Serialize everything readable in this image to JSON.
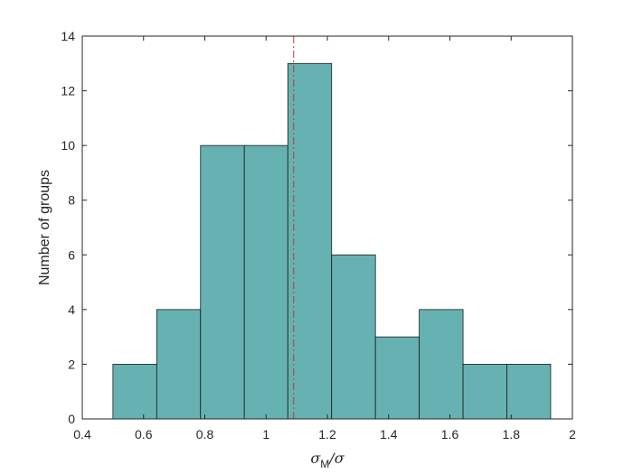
{
  "chart_data": {
    "type": "bar",
    "subtype": "histogram",
    "bins": [
      {
        "x0": 0.5,
        "x1": 0.643,
        "count": 2
      },
      {
        "x0": 0.643,
        "x1": 0.786,
        "count": 4
      },
      {
        "x0": 0.786,
        "x1": 0.929,
        "count": 10
      },
      {
        "x0": 0.929,
        "x1": 1.071,
        "count": 10
      },
      {
        "x0": 1.071,
        "x1": 1.214,
        "count": 13
      },
      {
        "x0": 1.214,
        "x1": 1.357,
        "count": 6
      },
      {
        "x0": 1.357,
        "x1": 1.5,
        "count": 3
      },
      {
        "x0": 1.5,
        "x1": 1.643,
        "count": 4
      },
      {
        "x0": 1.643,
        "x1": 1.786,
        "count": 2
      },
      {
        "x0": 1.786,
        "x1": 1.929,
        "count": 2
      }
    ],
    "reference_line": {
      "x": 1.09,
      "style": "dash-dot",
      "color": "#c0392b"
    },
    "xlabel": {
      "main": "σ",
      "sub": "M",
      "rest": "/σ"
    },
    "ylabel": "Number of groups",
    "xlim": [
      0.4,
      2
    ],
    "ylim": [
      0,
      14
    ],
    "xticks": [
      "0.4",
      "0.6",
      "0.8",
      "1",
      "1.2",
      "1.4",
      "1.6",
      "1.8",
      "2"
    ],
    "yticks": [
      "0",
      "2",
      "4",
      "6",
      "8",
      "10",
      "12",
      "14"
    ],
    "grid": false,
    "bar_color": "#66b2b2",
    "edge_color": "#1a1a1a"
  }
}
